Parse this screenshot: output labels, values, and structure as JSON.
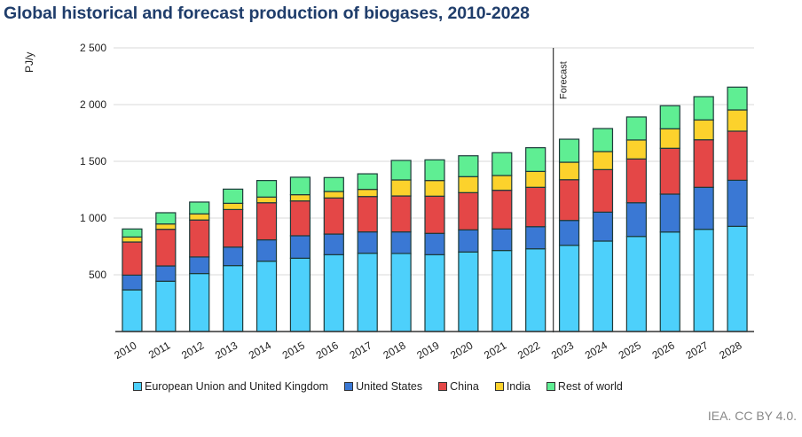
{
  "title": "Global historical and forecast production of biogases, 2010-2028",
  "source": "IEA. CC BY 4.0.",
  "chart_data": {
    "type": "bar",
    "stacked": true,
    "title": "Global historical and forecast production of biogases, 2010-2028",
    "xlabel": "",
    "ylabel": "PJ/y",
    "ylim": [
      0,
      2500
    ],
    "yticks": [
      500,
      1000,
      1500,
      2000,
      2500
    ],
    "ytick_labels": [
      "500",
      "1 000",
      "1 500",
      "2 000",
      "2 500"
    ],
    "grid": true,
    "legend_position": "bottom",
    "annotation": {
      "text": "Forecast",
      "between": [
        "2022",
        "2023"
      ]
    },
    "categories": [
      "2010",
      "2011",
      "2012",
      "2013",
      "2014",
      "2015",
      "2016",
      "2017",
      "2018",
      "2019",
      "2020",
      "2021",
      "2022",
      "2023",
      "2024",
      "2025",
      "2026",
      "2027",
      "2028"
    ],
    "series": [
      {
        "name": "European Union and United Kingdom",
        "color": "#4dd0fb",
        "values": [
          367,
          443,
          511,
          581,
          620,
          646,
          677,
          690,
          688,
          677,
          701,
          714,
          729,
          760,
          797,
          838,
          877,
          901,
          927
        ]
      },
      {
        "name": "United States",
        "color": "#3a78d4",
        "values": [
          130,
          135,
          146,
          163,
          188,
          198,
          182,
          188,
          190,
          188,
          195,
          190,
          195,
          219,
          255,
          297,
          334,
          370,
          406
        ]
      },
      {
        "name": "China",
        "color": "#e44747",
        "values": [
          292,
          323,
          326,
          331,
          327,
          307,
          318,
          312,
          317,
          328,
          328,
          341,
          347,
          359,
          375,
          386,
          404,
          419,
          433
        ]
      },
      {
        "name": "India",
        "color": "#fcd22c",
        "values": [
          44,
          47,
          54,
          55,
          50,
          55,
          57,
          63,
          141,
          138,
          141,
          130,
          140,
          154,
          159,
          167,
          172,
          175,
          187
        ]
      },
      {
        "name": "Rest of world",
        "color": "#5fee93",
        "values": [
          71,
          99,
          104,
          125,
          146,
          154,
          123,
          137,
          172,
          182,
          184,
          201,
          209,
          203,
          203,
          203,
          203,
          205,
          201
        ]
      }
    ]
  }
}
